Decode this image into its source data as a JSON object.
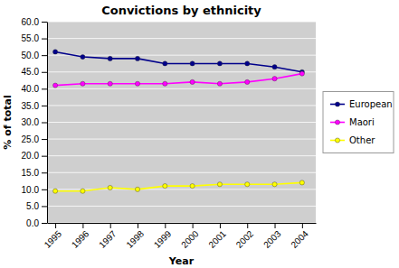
{
  "chart_data": {
    "type": "line",
    "title": "Convictions by ethnicity",
    "xlabel": "Year",
    "ylabel": "% of total",
    "x": [
      1995,
      1996,
      1997,
      1998,
      1999,
      2000,
      2001,
      2002,
      2003,
      2004
    ],
    "series": [
      {
        "name": "European",
        "color": "#00008B",
        "marker": "circle",
        "values": [
          51.0,
          49.5,
          49.0,
          49.0,
          47.5,
          47.5,
          47.5,
          47.5,
          46.5,
          45.0
        ]
      },
      {
        "name": "Maori",
        "color": "#FF00FF",
        "marker": "circle",
        "values": [
          41.0,
          41.5,
          41.5,
          41.5,
          41.5,
          42.0,
          41.5,
          42.0,
          43.0,
          44.5
        ]
      },
      {
        "name": "Other",
        "color": "#FFFF00",
        "marker": "circle",
        "values": [
          9.5,
          9.5,
          10.5,
          10.0,
          11.0,
          11.0,
          11.5,
          11.5,
          11.5,
          12.0
        ]
      }
    ],
    "xlim": [
      1994.7,
      2004.5
    ],
    "xticks": [
      1995,
      1996,
      1997,
      1998,
      1999,
      2000,
      2001,
      2002,
      2003,
      2004
    ],
    "ylim": [
      0,
      60
    ],
    "yticks": [
      {
        "value": 0,
        "label": "0.0"
      },
      {
        "value": 5,
        "label": "5.0"
      },
      {
        "value": 10,
        "label": "10.0"
      },
      {
        "value": 15,
        "label": "15.0"
      },
      {
        "value": 20,
        "label": "20.0"
      },
      {
        "value": 25,
        "label": "25.0"
      },
      {
        "value": 30,
        "label": "30.0"
      },
      {
        "value": 35,
        "label": "35.0"
      },
      {
        "value": 40,
        "label": "40.0"
      },
      {
        "value": 45,
        "label": "45.0"
      },
      {
        "value": 50,
        "label": "50.0"
      },
      {
        "value": 55,
        "label": "55.0"
      },
      {
        "value": 60,
        "label": "60.0"
      }
    ],
    "grid": true,
    "legend": "right"
  }
}
